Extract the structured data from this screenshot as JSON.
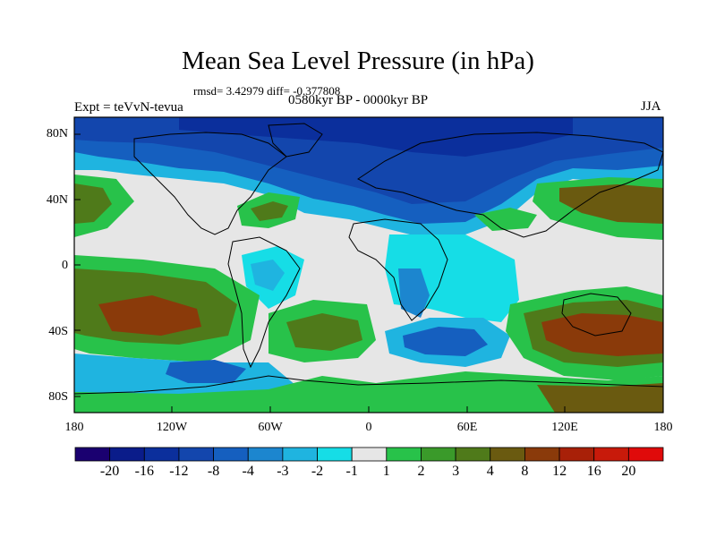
{
  "title": "Mean Sea Level Pressure (in hPa)",
  "stats": "rmsd= 3.42979 diff= -0.377808",
  "experiment": "Expt = teVvN-tevua",
  "period": "0580kyr BP - 0000kyr BP",
  "season": "JJA",
  "lat_ticks": [
    "80N",
    "40N",
    "0",
    "40S",
    "80S"
  ],
  "lon_ticks": [
    "180",
    "120W",
    "60W",
    "0",
    "60E",
    "120E",
    "180"
  ],
  "colorbar": {
    "labels": [
      "-20",
      "-16",
      "-12",
      "-8",
      "-4",
      "-3",
      "-2",
      "-1",
      "1",
      "2",
      "3",
      "4",
      "8",
      "12",
      "16",
      "20"
    ],
    "colors": [
      "#1a0070",
      "#0a1c8a",
      "#0b2f9c",
      "#1346ad",
      "#155fbf",
      "#1c86cf",
      "#1fb4e0",
      "#16dde6",
      "#e6e6e6",
      "#28c24a",
      "#3a9a2a",
      "#4f7a1a",
      "#6a5a10",
      "#8a3a0a",
      "#a82008",
      "#c81a0a",
      "#e00a0a"
    ]
  }
}
